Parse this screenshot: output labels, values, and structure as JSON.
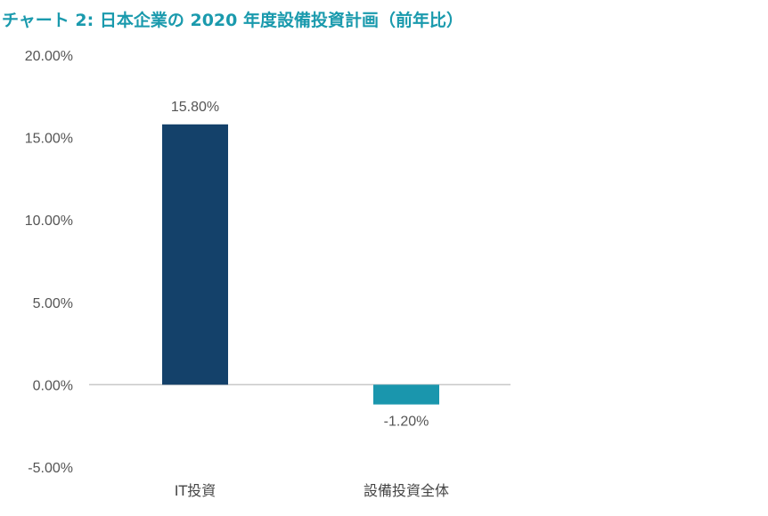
{
  "chart_data": {
    "type": "bar",
    "title": "チャート 2: 日本企業の 2020 年度設備投資計画（前年比）",
    "xlabel": "",
    "ylabel": "",
    "categories": [
      "IT投資",
      "設備投資全体"
    ],
    "values": [
      15.8,
      -1.2
    ],
    "value_labels": [
      "15.80%",
      "-1.20%"
    ],
    "colors": [
      "#14416a",
      "#1a96ad"
    ],
    "ylim": [
      -5,
      20
    ],
    "yticks": [
      20,
      15,
      10,
      5,
      0,
      -5
    ],
    "ytick_labels": [
      "20.00%",
      "15.00%",
      "10.00%",
      "5.00%",
      "0.00%",
      "-5.00%"
    ],
    "grid": false,
    "legend": "none",
    "title_color": "#1a9aad"
  }
}
